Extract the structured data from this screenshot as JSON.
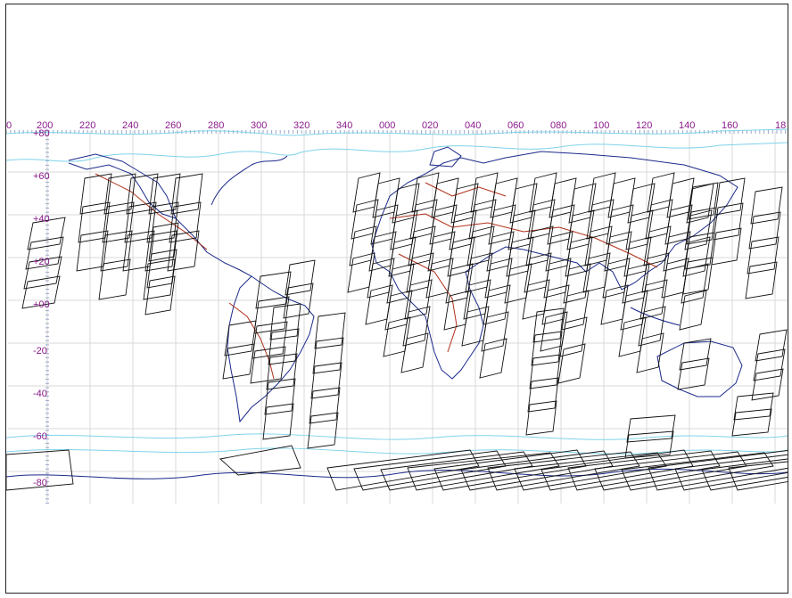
{
  "window": {
    "title": ""
  },
  "map": {
    "projection": "equirectangular",
    "longitude_labels": [
      "0",
      "200",
      "220",
      "240",
      "260",
      "280",
      "300",
      "320",
      "340",
      "000",
      "020",
      "040",
      "060",
      "080",
      "100",
      "120",
      "140",
      "160",
      "18"
    ],
    "latitude_labels": [
      "+80",
      "+60",
      "+40",
      "+20",
      "+00",
      "-20",
      "-40",
      "-60",
      "-80"
    ],
    "colors": {
      "label": "#8a1a8a",
      "grid": "#d8d8d8",
      "coastline": "#1c2a8a",
      "borders": "#b0301a",
      "ice_limit": "#7fd3ea",
      "scene_footprints": "#111111"
    }
  }
}
